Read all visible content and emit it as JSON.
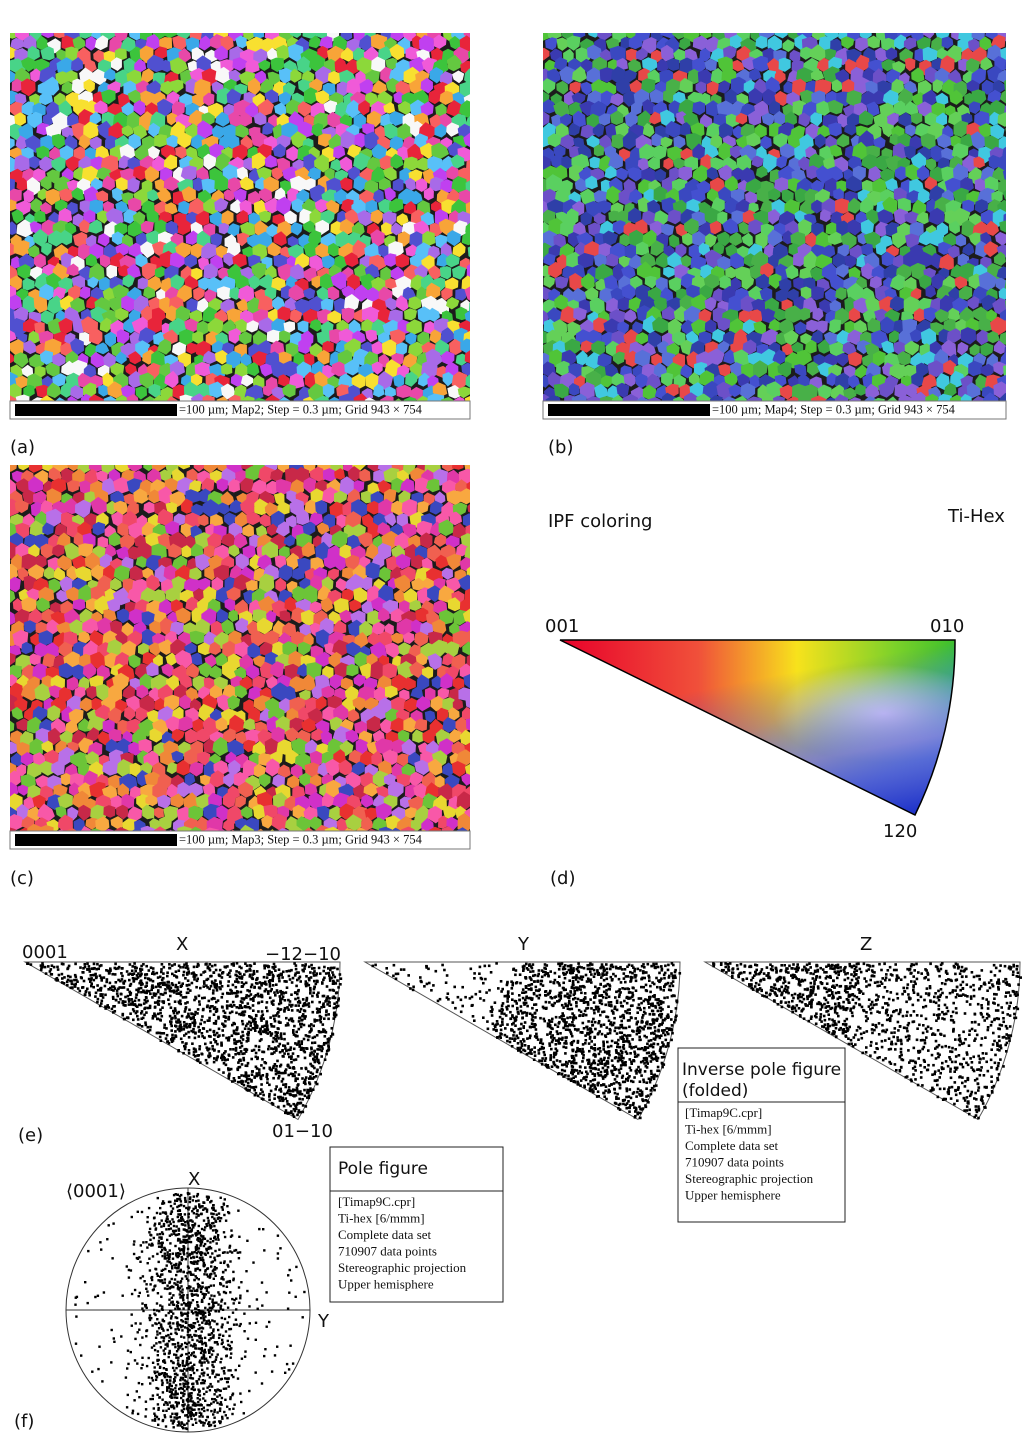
{
  "maps": [
    {
      "label": "(a)",
      "caption": "=100 µm; Map2; Step = 0.3 µm; Grid 943 × 754"
    },
    {
      "label": "(b)",
      "caption": "=100 µm; Map4; Step = 0.3 µm; Grid 943 × 754"
    },
    {
      "label": "(c)",
      "caption": "=100 µm; Map3; Step = 0.3 µm; Grid 943 × 754"
    }
  ],
  "ipf_key": {
    "label": "(d)",
    "title": "IPF coloring",
    "phase": "Ti-Hex",
    "corners": [
      "001",
      "010",
      "120"
    ]
  },
  "inverse_pole_figures": {
    "label": "(e)",
    "corner_labels": [
      "0001",
      "−12−10",
      "01−10"
    ],
    "axes": [
      "X",
      "Y",
      "Z"
    ],
    "legend": {
      "title_lines": [
        "Inverse pole figure",
        "(folded)"
      ],
      "lines": [
        "[Timap9C.cpr]",
        "Ti-hex [6/mmm]",
        "Complete data set",
        "710907 data points",
        "Stereographic projection",
        "Upper hemisphere"
      ]
    }
  },
  "pole_figure": {
    "label": "(f)",
    "direction": "⟨0001⟩",
    "axes": [
      "X",
      "Y"
    ],
    "legend": {
      "title": "Pole figure",
      "lines": [
        "[Timap9C.cpr]",
        "Ti-hex [6/mmm]",
        "Complete data set",
        "710907 data points",
        "Stereographic projection",
        "Upper hemisphere"
      ]
    }
  }
}
